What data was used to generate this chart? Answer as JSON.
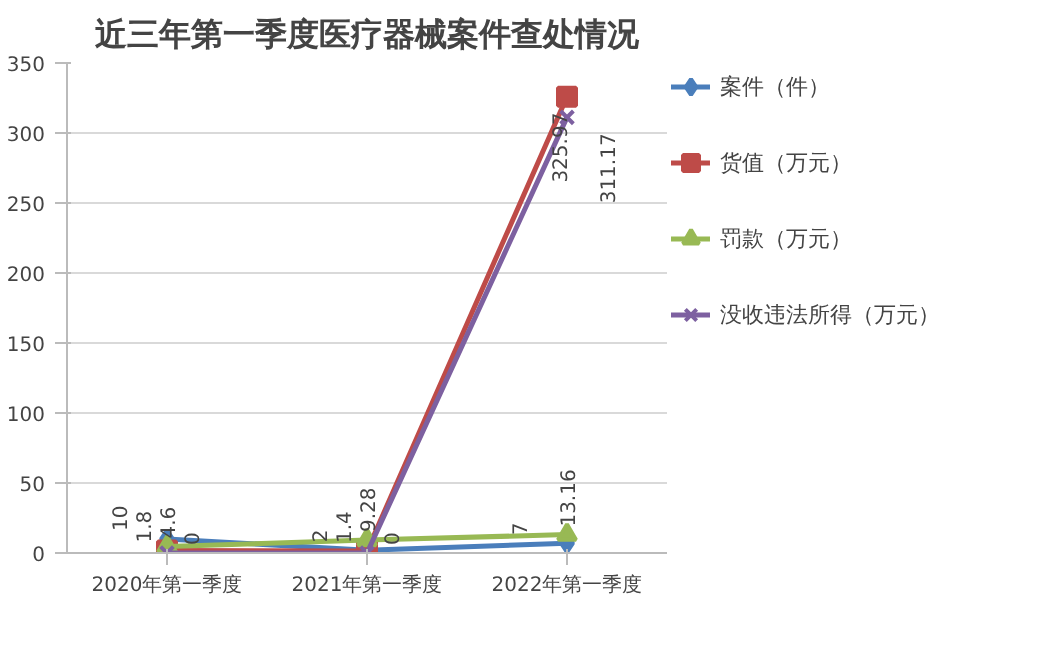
{
  "chart_data": {
    "type": "line",
    "title": "近三年第一季度医疗器械案件查处情况",
    "categories": [
      "2020年第一季度",
      "2021年第一季度",
      "2022年第一季度"
    ],
    "series": [
      {
        "name": "案件（件）",
        "color": "#4a7ebb",
        "values": [
          10,
          2,
          7
        ],
        "marker": "diamond"
      },
      {
        "name": "货值（万元）",
        "color": "#be4b48",
        "values": [
          1.8,
          1.4,
          325.97
        ],
        "marker": "square"
      },
      {
        "name": "罚款（万元）",
        "color": "#98b954",
        "values": [
          4.6,
          9.28,
          13.16
        ],
        "marker": "triangle"
      },
      {
        "name": "没收违法所得（万元）",
        "color": "#7d60a0",
        "values": [
          0,
          0,
          311.17
        ],
        "marker": "cross"
      }
    ],
    "ylim": [
      0,
      350
    ],
    "yticks": [
      0,
      50,
      100,
      150,
      200,
      250,
      300,
      350
    ],
    "grid": "y",
    "legend": "right",
    "data_labels": true
  }
}
